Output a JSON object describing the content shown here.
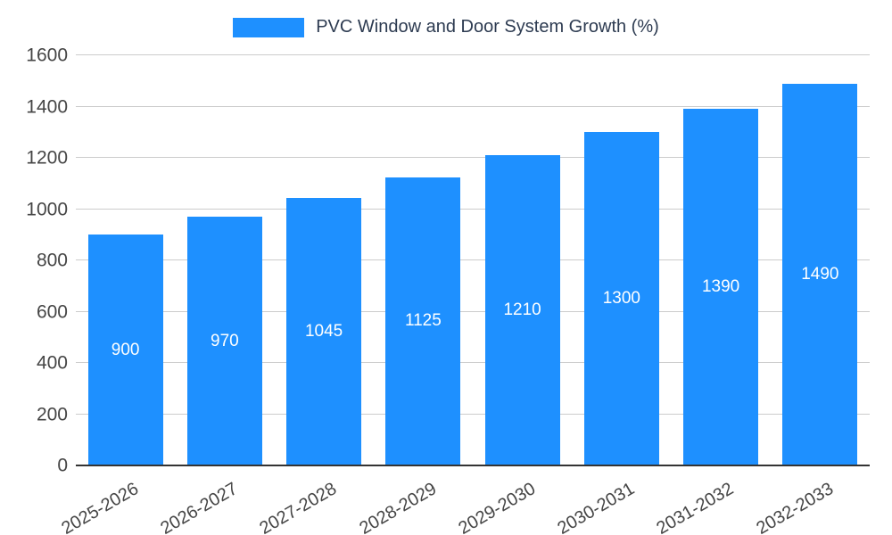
{
  "chart_data": {
    "type": "bar",
    "title": "PVC Window and Door System Growth (%)",
    "categories": [
      "2025-2026",
      "2026-2027",
      "2027-2028",
      "2028-2029",
      "2029-2030",
      "2030-2031",
      "2031-2032",
      "2032-2033"
    ],
    "values": [
      900,
      970,
      1045,
      1125,
      1210,
      1300,
      1390,
      1490
    ],
    "xlabel": "",
    "ylabel": "",
    "ylim": [
      0,
      1600
    ],
    "yticks": [
      0,
      200,
      400,
      600,
      800,
      1000,
      1200,
      1400,
      1600
    ],
    "grid": true,
    "legend_position": "top",
    "bar_color": "#1e90ff",
    "label_color": "#ffffff",
    "axis_text_color": "#454545",
    "grid_color": "#cccccc",
    "baseline_color": "#333333",
    "title_color": "#2d3b51"
  }
}
